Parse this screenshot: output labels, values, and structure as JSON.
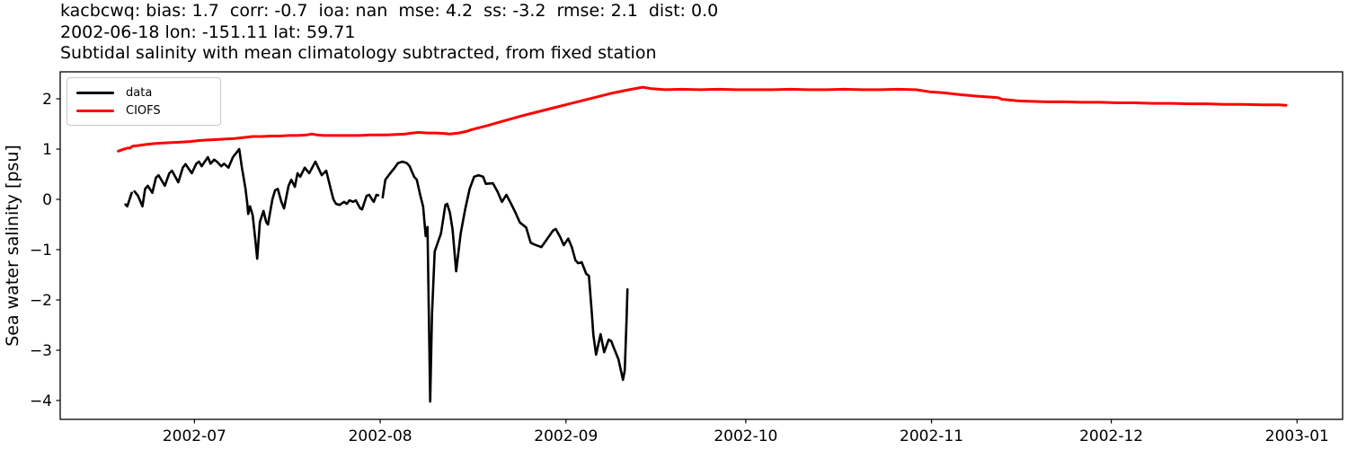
{
  "chart_data": {
    "type": "line",
    "title_lines": [
      "kacbcwq: bias: 1.7  corr: -0.7  ioa: nan  mse: 4.2  ss: -3.2  rmse: 2.1  dist: 0.0",
      "2002-06-18 lon: -151.11 lat: 59.71",
      "Subtidal salinity with mean climatology subtracted, from fixed station"
    ],
    "ylabel": "Sea water salinity [psu]",
    "xlabel": "",
    "x_unit": "days since 2002-06-01",
    "xlim_days": [
      7.6,
      221.6
    ],
    "ylim": [
      -4.375,
      2.536
    ],
    "grid": false,
    "y_ticks": [
      2,
      1,
      0,
      -1,
      -2,
      -3,
      -4
    ],
    "x_ticks": [
      {
        "day": 30,
        "label": "2002-07"
      },
      {
        "day": 61,
        "label": "2002-08"
      },
      {
        "day": 92,
        "label": "2002-09"
      },
      {
        "day": 122,
        "label": "2002-10"
      },
      {
        "day": 153,
        "label": "2002-11"
      },
      {
        "day": 183,
        "label": "2002-12"
      },
      {
        "day": 214,
        "label": "2003-01"
      }
    ],
    "legend_position": "upper left",
    "legend": [
      {
        "label": "data",
        "color": "#000000"
      },
      {
        "label": "CIOFS",
        "color": "#ff0000"
      }
    ],
    "series": [
      {
        "name": "data",
        "color": "#000000",
        "line_width": 2.6,
        "points": [
          [
            18.48,
            -0.1
          ],
          [
            18.78,
            -0.14
          ],
          [
            19.53,
            0.13
          ],
          null,
          [
            19.98,
            0.16
          ],
          [
            20.58,
            0.07
          ],
          [
            21.32,
            -0.14
          ],
          [
            21.77,
            0.21
          ],
          [
            22.22,
            0.27
          ],
          [
            22.97,
            0.13
          ],
          [
            23.57,
            0.43
          ],
          [
            24.02,
            0.48
          ],
          [
            25.06,
            0.27
          ],
          [
            25.81,
            0.52
          ],
          [
            26.26,
            0.57
          ],
          [
            27.31,
            0.34
          ],
          [
            28.06,
            0.63
          ],
          [
            28.5,
            0.7
          ],
          [
            29.55,
            0.52
          ],
          [
            30.3,
            0.71
          ],
          [
            30.75,
            0.75
          ],
          [
            31.2,
            0.66
          ],
          [
            32.24,
            0.84
          ],
          [
            32.69,
            0.71
          ],
          [
            33.29,
            0.79
          ],
          [
            33.74,
            0.75
          ],
          [
            34.49,
            0.66
          ],
          [
            34.94,
            0.71
          ],
          [
            35.68,
            0.63
          ],
          [
            36.43,
            0.84
          ],
          [
            37.03,
            0.93
          ],
          [
            37.48,
            1.0
          ],
          [
            37.93,
            0.63
          ],
          [
            38.53,
            0.21
          ],
          [
            38.83,
            -0.09
          ],
          [
            38.98,
            -0.29
          ],
          [
            39.27,
            -0.14
          ],
          [
            39.72,
            -0.32
          ],
          [
            40.17,
            -0.82
          ],
          [
            40.47,
            -1.18
          ],
          [
            40.92,
            -0.45
          ],
          [
            41.52,
            -0.23
          ],
          [
            41.97,
            -0.45
          ],
          [
            42.27,
            -0.5
          ],
          [
            43.01,
            0.0
          ],
          [
            43.46,
            0.18
          ],
          [
            43.91,
            0.21
          ],
          [
            44.51,
            -0.05
          ],
          [
            44.96,
            -0.18
          ],
          [
            45.71,
            0.27
          ],
          [
            46.16,
            0.39
          ],
          [
            46.76,
            0.25
          ],
          [
            47.2,
            0.52
          ],
          [
            47.65,
            0.45
          ],
          [
            48.4,
            0.63
          ],
          [
            49.15,
            0.52
          ],
          [
            50.19,
            0.75
          ],
          [
            51.24,
            0.48
          ],
          [
            51.99,
            0.57
          ],
          [
            52.74,
            0.21
          ],
          [
            53.19,
            0.0
          ],
          [
            53.63,
            -0.09
          ],
          [
            54.23,
            -0.11
          ],
          [
            54.98,
            -0.05
          ],
          [
            55.43,
            -0.09
          ],
          [
            55.88,
            -0.02
          ],
          [
            56.48,
            -0.05
          ],
          [
            56.93,
            -0.02
          ],
          [
            57.67,
            -0.18
          ],
          [
            57.97,
            -0.2
          ],
          [
            58.72,
            0.07
          ],
          [
            59.17,
            0.09
          ],
          [
            59.62,
            0.0
          ],
          [
            59.92,
            -0.05
          ],
          [
            60.37,
            0.09
          ],
          [
            60.67,
            0.08
          ],
          null,
          [
            61.41,
            0.04
          ],
          [
            61.86,
            0.39
          ],
          [
            62.61,
            0.51
          ],
          [
            63.36,
            0.62
          ],
          [
            63.96,
            0.72
          ],
          [
            64.7,
            0.75
          ],
          [
            65.45,
            0.72
          ],
          [
            65.9,
            0.66
          ],
          [
            66.65,
            0.45
          ],
          [
            67.1,
            0.39
          ],
          [
            67.7,
            0.07
          ],
          [
            68.15,
            -0.14
          ],
          [
            68.59,
            -0.73
          ],
          [
            68.89,
            -0.55
          ],
          [
            69.34,
            -4.02
          ],
          [
            69.64,
            -2.29
          ],
          [
            70.09,
            -1.04
          ],
          [
            70.69,
            -0.83
          ],
          [
            71.14,
            -0.68
          ],
          [
            71.88,
            -0.11
          ],
          [
            72.18,
            -0.09
          ],
          [
            72.63,
            -0.26
          ],
          [
            73.08,
            -0.6
          ],
          [
            73.68,
            -1.43
          ],
          [
            74.43,
            -0.68
          ],
          [
            75.18,
            -0.2
          ],
          [
            75.92,
            0.21
          ],
          [
            76.67,
            0.45
          ],
          [
            77.42,
            0.48
          ],
          [
            78.17,
            0.45
          ],
          [
            78.62,
            0.31
          ],
          [
            79.81,
            0.32
          ],
          [
            80.56,
            0.16
          ],
          [
            81.31,
            -0.05
          ],
          [
            82.06,
            0.09
          ],
          [
            82.81,
            -0.08
          ],
          [
            83.55,
            -0.26
          ],
          [
            84.3,
            -0.46
          ],
          [
            85.05,
            -0.53
          ],
          [
            85.35,
            -0.56
          ],
          [
            86.1,
            -0.86
          ],
          [
            86.55,
            -0.89
          ],
          [
            87.89,
            -0.95
          ],
          [
            88.79,
            -0.8
          ],
          [
            89.84,
            -0.62
          ],
          [
            90.29,
            -0.59
          ],
          [
            91.04,
            -0.75
          ],
          [
            91.63,
            -0.91
          ],
          [
            92.38,
            -0.78
          ],
          [
            92.98,
            -0.95
          ],
          [
            93.58,
            -1.21
          ],
          [
            94.03,
            -1.27
          ],
          [
            94.63,
            -1.25
          ],
          [
            95.38,
            -1.48
          ],
          [
            95.82,
            -1.52
          ],
          [
            96.27,
            -2.2
          ],
          [
            96.57,
            -2.7
          ],
          [
            97.02,
            -3.09
          ],
          [
            97.77,
            -2.68
          ],
          [
            98.37,
            -3.04
          ],
          [
            99.12,
            -2.79
          ],
          [
            99.56,
            -2.82
          ],
          [
            100.01,
            -2.96
          ],
          [
            100.76,
            -3.18
          ],
          [
            101.51,
            -3.59
          ],
          [
            101.81,
            -3.4
          ],
          [
            102.11,
            -2.4
          ],
          [
            102.26,
            -1.79
          ]
        ]
      },
      {
        "name": "CIOFS",
        "color": "#ff0000",
        "line_width": 3,
        "points": [
          [
            17.29,
            0.96
          ],
          [
            18.03,
            0.99
          ],
          [
            18.78,
            1.02
          ],
          [
            19.23,
            1.02
          ],
          [
            19.68,
            1.06
          ],
          [
            20.58,
            1.07
          ],
          [
            21.77,
            1.09
          ],
          [
            23.27,
            1.11
          ],
          [
            24.76,
            1.12
          ],
          [
            26.26,
            1.13
          ],
          [
            27.76,
            1.14
          ],
          [
            29.25,
            1.15
          ],
          [
            30.75,
            1.17
          ],
          [
            32.24,
            1.18
          ],
          [
            33.74,
            1.19
          ],
          [
            35.23,
            1.2
          ],
          [
            36.73,
            1.21
          ],
          [
            38.23,
            1.23
          ],
          [
            39.72,
            1.25
          ],
          [
            41.22,
            1.25
          ],
          [
            42.71,
            1.26
          ],
          [
            44.21,
            1.26
          ],
          [
            45.71,
            1.27
          ],
          [
            47.2,
            1.27
          ],
          [
            48.7,
            1.28
          ],
          [
            49.6,
            1.3
          ],
          [
            50.49,
            1.28
          ],
          [
            51.69,
            1.27
          ],
          [
            53.19,
            1.27
          ],
          [
            54.68,
            1.27
          ],
          [
            56.18,
            1.27
          ],
          [
            57.67,
            1.27
          ],
          [
            59.17,
            1.28
          ],
          [
            60.67,
            1.28
          ],
          [
            62.16,
            1.28
          ],
          [
            63.66,
            1.29
          ],
          [
            65.15,
            1.3
          ],
          [
            66.35,
            1.32
          ],
          [
            67.4,
            1.33
          ],
          [
            68.89,
            1.32
          ],
          [
            70.39,
            1.32
          ],
          [
            71.88,
            1.31
          ],
          [
            72.63,
            1.3
          ],
          [
            74.13,
            1.32
          ],
          [
            75.62,
            1.36
          ],
          [
            76.07,
            1.38
          ],
          [
            78.62,
            1.46
          ],
          [
            81.61,
            1.56
          ],
          [
            84.6,
            1.66
          ],
          [
            87.59,
            1.75
          ],
          [
            90.58,
            1.84
          ],
          [
            93.58,
            1.93
          ],
          [
            96.57,
            2.02
          ],
          [
            99.56,
            2.11
          ],
          [
            102.56,
            2.18
          ],
          [
            104.8,
            2.23
          ],
          [
            106.29,
            2.2
          ],
          [
            108.54,
            2.18
          ],
          [
            111.53,
            2.19
          ],
          [
            114.52,
            2.18
          ],
          [
            117.51,
            2.19
          ],
          [
            120.5,
            2.18
          ],
          [
            123.49,
            2.18
          ],
          [
            126.49,
            2.18
          ],
          [
            129.48,
            2.19
          ],
          [
            132.47,
            2.18
          ],
          [
            135.46,
            2.18
          ],
          [
            138.45,
            2.19
          ],
          [
            141.44,
            2.18
          ],
          [
            144.43,
            2.18
          ],
          [
            147.42,
            2.19
          ],
          [
            150.41,
            2.18
          ],
          [
            152.66,
            2.14
          ],
          [
            154.9,
            2.12
          ],
          [
            157.89,
            2.08
          ],
          [
            160.88,
            2.05
          ],
          [
            163.13,
            2.03
          ],
          [
            164.17,
            2.02
          ],
          [
            164.77,
            1.99
          ],
          [
            165.67,
            1.98
          ],
          [
            167.31,
            1.96
          ],
          [
            169.11,
            1.95
          ],
          [
            172.1,
            1.94
          ],
          [
            175.09,
            1.94
          ],
          [
            178.08,
            1.93
          ],
          [
            181.07,
            1.93
          ],
          [
            184.06,
            1.92
          ],
          [
            187.05,
            1.92
          ],
          [
            190.04,
            1.91
          ],
          [
            193.03,
            1.91
          ],
          [
            196.02,
            1.9
          ],
          [
            199.01,
            1.9
          ],
          [
            202.0,
            1.89
          ],
          [
            205.0,
            1.89
          ],
          [
            207.99,
            1.88
          ],
          [
            210.98,
            1.88
          ],
          [
            212.17,
            1.87
          ]
        ]
      }
    ]
  }
}
